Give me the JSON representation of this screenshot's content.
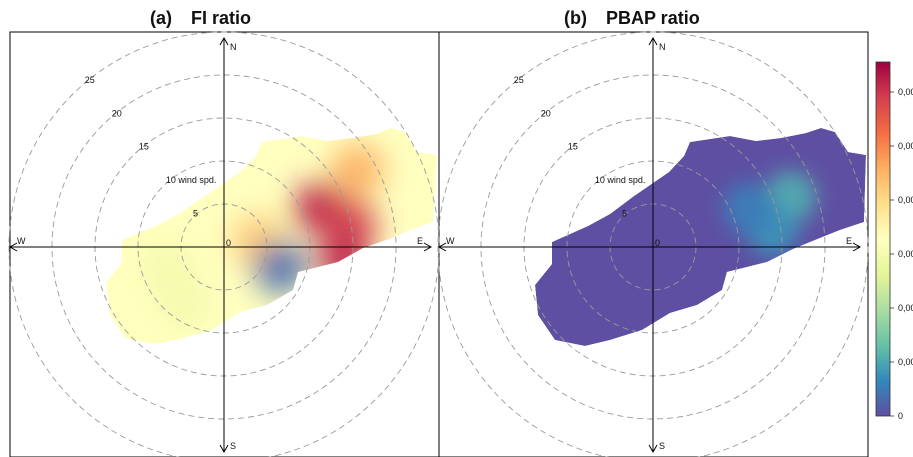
{
  "panels": [
    {
      "letter": "(a)",
      "title": "FI ratio",
      "ring_labels": [
        "5",
        "10 wind spd.",
        "15",
        "20",
        "25"
      ],
      "compass": {
        "north": "N",
        "south": "S",
        "east": "E",
        "west": "W",
        "center": "0"
      }
    },
    {
      "letter": "(b)",
      "title": "PBAP ratio",
      "ring_labels": [
        "5",
        "10 wind spd.",
        "15",
        "20",
        "25"
      ],
      "compass": {
        "north": "N",
        "south": "S",
        "east": "E",
        "west": "W",
        "center": "0"
      }
    }
  ],
  "colorbar": {
    "tick_labels": [
      "0,00",
      "0,00",
      "0,00",
      "0,00",
      "0,00",
      "0,00",
      "0"
    ],
    "colors": [
      "#9e0142",
      "#d53e4f",
      "#f46d43",
      "#fdae61",
      "#fee08b",
      "#ffffbf",
      "#e6f598",
      "#abdda4",
      "#66c2a5",
      "#3288bd",
      "#5e4fa2"
    ]
  },
  "chart_data": [
    {
      "type": "heatmap",
      "subtype": "polar wind-speed/direction plot",
      "title": "FI ratio",
      "radial_axis": "wind spd.",
      "radial_ticks": [
        5,
        10,
        15,
        20,
        25
      ],
      "directions": [
        "N",
        "E",
        "S",
        "W"
      ],
      "hotspots": [
        {
          "direction_deg": 68,
          "wind_speed": 12,
          "level": 0.95
        },
        {
          "direction_deg": 80,
          "wind_speed": 15,
          "level": 0.9
        },
        {
          "direction_deg": 96,
          "wind_speed": 14,
          "level": 0.95
        },
        {
          "direction_deg": 60,
          "wind_speed": 18,
          "level": 0.7
        },
        {
          "direction_deg": 80,
          "wind_speed": 4,
          "level": 0.65
        },
        {
          "direction_deg": 215,
          "wind_speed": 8,
          "level": 0.45
        },
        {
          "direction_deg": 250,
          "wind_speed": 7,
          "level": 0.45
        },
        {
          "direction_deg": 110,
          "wind_speed": 7,
          "level": 0.05
        }
      ]
    },
    {
      "type": "heatmap",
      "subtype": "polar wind-speed/direction plot",
      "title": "PBAP ratio",
      "radial_axis": "wind spd.",
      "radial_ticks": [
        5,
        10,
        15,
        20,
        25
      ],
      "directions": [
        "N",
        "E",
        "S",
        "W"
      ],
      "hotspots": [
        {
          "direction_deg": 70,
          "wind_speed": 17,
          "level": 0.16
        },
        {
          "direction_deg": 82,
          "wind_speed": 14,
          "level": 0.12
        },
        {
          "direction_deg": 68,
          "wind_speed": 12,
          "level": 0.08
        }
      ]
    }
  ]
}
